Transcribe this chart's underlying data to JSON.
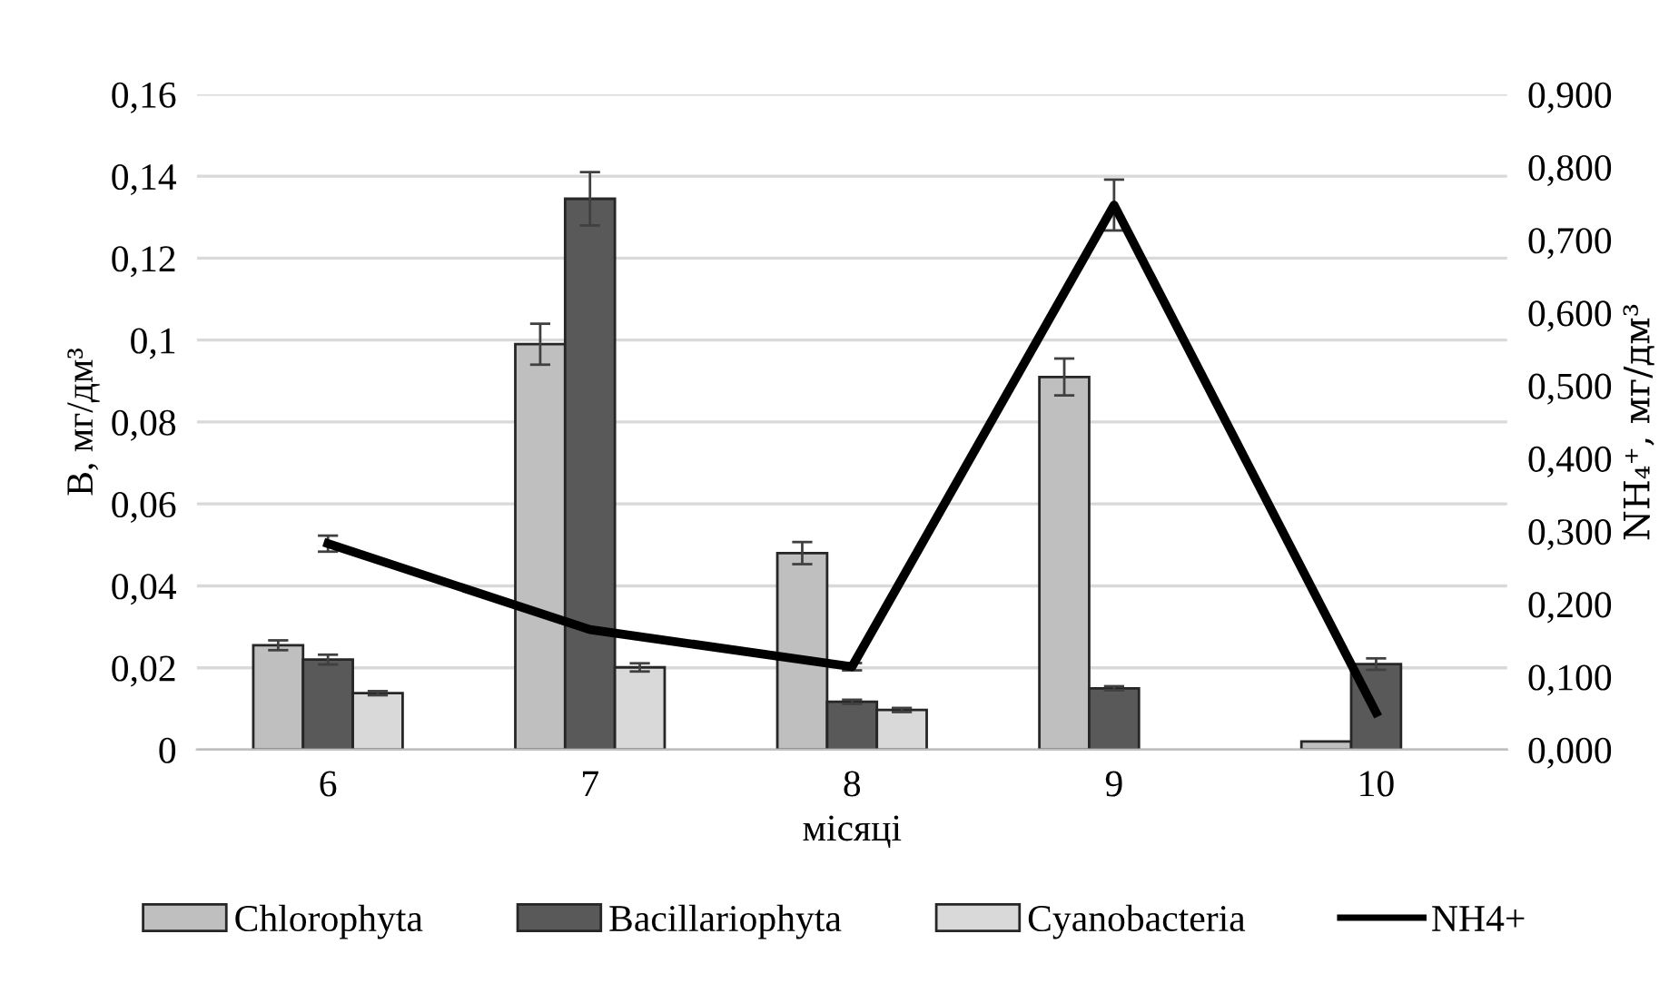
{
  "chart_data": {
    "type": "bar",
    "xlabel": "місяці",
    "ylabel": "В, мг/дм³",
    "y2label": "NH₄⁺, мг/дм³",
    "categories": [
      "6",
      "7",
      "8",
      "9",
      "10"
    ],
    "series": [
      {
        "name": "Chlorophyta",
        "color": "#bfbfbf",
        "values": [
          0.0255,
          0.099,
          0.048,
          0.091,
          0.002
        ],
        "errors": [
          0.0012,
          0.005,
          0.0027,
          0.0045,
          null
        ]
      },
      {
        "name": "Bacillariophyta",
        "color": "#595959",
        "values": [
          0.022,
          0.1345,
          0.0117,
          0.015,
          0.0209
        ],
        "errors": [
          0.0012,
          0.0065,
          0.0005,
          0.0005,
          0.0014
        ]
      },
      {
        "name": "Cyanobacteria",
        "color": "#d9d9d9",
        "values": [
          0.0138,
          0.0201,
          0.0097,
          null,
          null
        ],
        "errors": [
          0.0005,
          0.001,
          0.0005,
          null,
          null
        ]
      },
      {
        "name": "NH4+",
        "color": "#000000",
        "type": "line",
        "axis": "y2",
        "values": [
          0.283,
          0.165,
          0.114,
          0.748,
          0.051
        ],
        "errors": [
          0.011,
          null,
          0.005,
          0.035,
          null
        ]
      }
    ],
    "ylim": [
      0,
      0.16
    ],
    "yticks": [
      0,
      {
        "value": 0.02,
        "label": "0,02"
      },
      {
        "value": 0.04,
        "label": "0,04"
      },
      {
        "value": 0.06,
        "label": "0,06"
      },
      {
        "value": 0.08,
        "label": "0,08"
      },
      {
        "value": 0.1,
        "label": "0,1"
      },
      {
        "value": 0.12,
        "label": "0,12"
      },
      {
        "value": 0.14,
        "label": "0,14"
      },
      {
        "value": 0.16,
        "label": "0,16"
      }
    ],
    "y2lim": [
      0,
      0.9
    ],
    "y2ticks": [
      {
        "value": 0,
        "label": "0,000"
      },
      {
        "value": 0.1,
        "label": "0,100"
      },
      {
        "value": 0.2,
        "label": "0,200"
      },
      {
        "value": 0.3,
        "label": "0,300"
      },
      {
        "value": 0.4,
        "label": "0,400"
      },
      {
        "value": 0.5,
        "label": "0,500"
      },
      {
        "value": 0.6,
        "label": "0,600"
      },
      {
        "value": 0.7,
        "label": "0,700"
      },
      {
        "value": 0.8,
        "label": "0,800"
      },
      {
        "value": 0.9,
        "label": "0,900"
      }
    ],
    "grid": "y",
    "legend": "bottom",
    "marker": "none",
    "line_style": "solid"
  }
}
